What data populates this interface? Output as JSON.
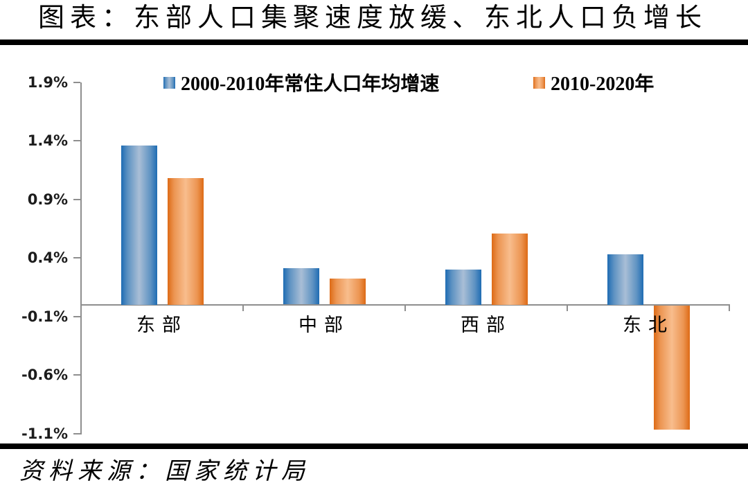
{
  "header": {
    "title": "图表：东部人口集聚速度放缓、东北人口负增长"
  },
  "footer": {
    "source": "资料来源：国家统计局"
  },
  "chart_data": {
    "type": "bar",
    "title": "图表：东部人口集聚速度放缓、东北人口负增长",
    "categories": [
      "东部",
      "中部",
      "西部",
      "东北"
    ],
    "series": [
      {
        "name": "2000-2010年常住人口年均增速",
        "values": [
          1.36,
          0.31,
          0.3,
          0.43
        ],
        "color_edge": "#1e6cb3",
        "color_mid": "#5d92c2",
        "color_center": "#a9bed6"
      },
      {
        "name": "2010-2020年",
        "values": [
          1.08,
          0.22,
          0.61,
          -1.06
        ],
        "color_edge": "#dd6a15",
        "color_mid": "#ec9552",
        "color_center": "#f8bd8d"
      }
    ],
    "yticks": [
      {
        "value": 1.9,
        "label": "1.9%"
      },
      {
        "value": 1.4,
        "label": "1.4%"
      },
      {
        "value": 0.9,
        "label": "0.9%"
      },
      {
        "value": 0.4,
        "label": "0.4%"
      },
      {
        "value": -0.1,
        "label": "-0.1%"
      },
      {
        "value": -0.6,
        "label": "-0.6%"
      },
      {
        "value": -1.1,
        "label": "-1.1%"
      }
    ],
    "ylim": [
      -1.1,
      1.9
    ],
    "xlabel": "",
    "ylabel": "",
    "unit": "%",
    "grid": false,
    "legend_position": "top",
    "axis_color": "#8e8e8e",
    "text_color": "#000000"
  }
}
